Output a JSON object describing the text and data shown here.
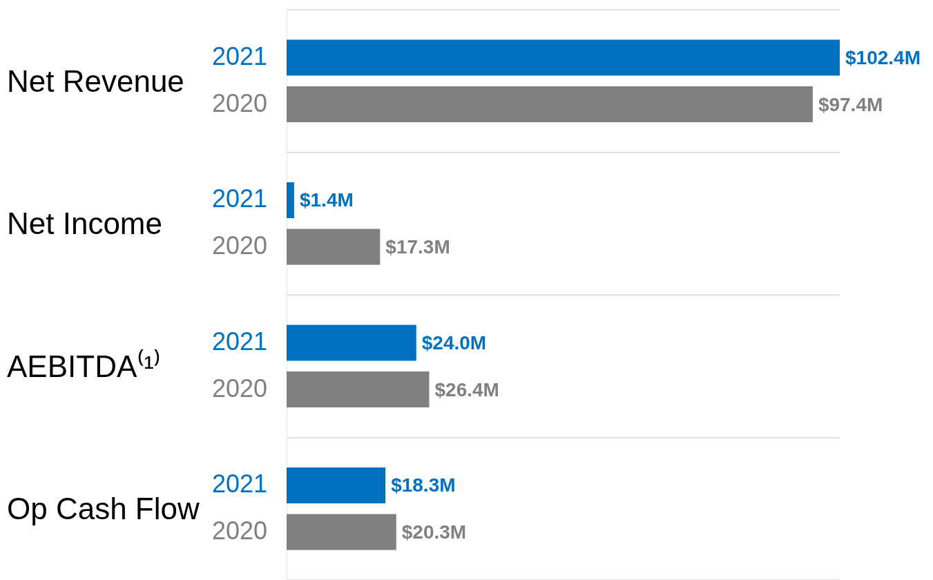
{
  "chart_data": {
    "type": "bar",
    "orientation": "horizontal",
    "categories": [
      "Net Revenue",
      "Net Income",
      "AEBITDA⁽¹⁾",
      "Op Cash Flow"
    ],
    "grid": "y",
    "series": [
      {
        "name": "2021",
        "color": "#0070c0",
        "values": [
          102.4,
          1.4,
          24.0,
          18.3
        ],
        "value_labels": [
          "$102.4M",
          "$1.4M",
          "$24.0M",
          "$18.3M"
        ]
      },
      {
        "name": "2020",
        "color": "#808080",
        "values": [
          97.4,
          17.3,
          26.4,
          20.3
        ],
        "value_labels": [
          "$97.4M",
          "$17.3M",
          "$26.4M",
          "$20.3M"
        ]
      }
    ]
  }
}
